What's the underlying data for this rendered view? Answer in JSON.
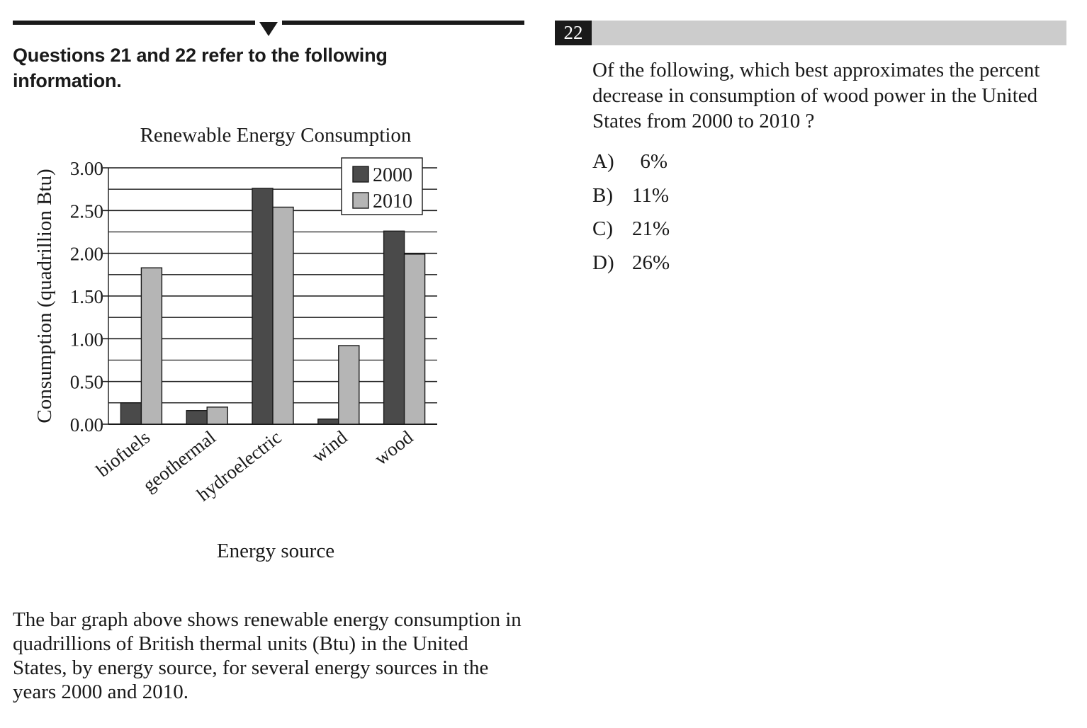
{
  "left": {
    "intro": "Questions 21 and 22 refer to the following information.",
    "description": "The bar graph above shows renewable energy consumption in quadrillions of British thermal units (Btu) in the United States, by energy source, for several energy sources in the years 2000 and 2010."
  },
  "chart_data": {
    "type": "bar",
    "title": "Renewable Energy Consumption",
    "xlabel": "Energy source",
    "ylabel": "Consumption (quadrillion Btu)",
    "categories": [
      "biofuels",
      "geothermal",
      "hydroelectric",
      "wind",
      "wood"
    ],
    "series": [
      {
        "name": "2000",
        "values": [
          0.25,
          0.16,
          2.76,
          0.06,
          2.26
        ],
        "color": "#4a4a4a"
      },
      {
        "name": "2010",
        "values": [
          1.83,
          0.2,
          2.54,
          0.92,
          1.99
        ],
        "color": "#b5b5b5"
      }
    ],
    "ylim": [
      0,
      3.0
    ],
    "yticks": [
      "0.00",
      "0.50",
      "1.00",
      "1.50",
      "2.00",
      "2.50",
      "3.00"
    ],
    "grid": true,
    "legend_position": "top-right"
  },
  "question": {
    "number": "22",
    "text": "Of the following, which best approximates the percent decrease in consumption of wood power in the United States from 2000 to 2010 ?",
    "choices": [
      {
        "letter": "A)",
        "value": "6%"
      },
      {
        "letter": "B)",
        "value": "11%"
      },
      {
        "letter": "C)",
        "value": "21%"
      },
      {
        "letter": "D)",
        "value": "26%"
      }
    ]
  }
}
